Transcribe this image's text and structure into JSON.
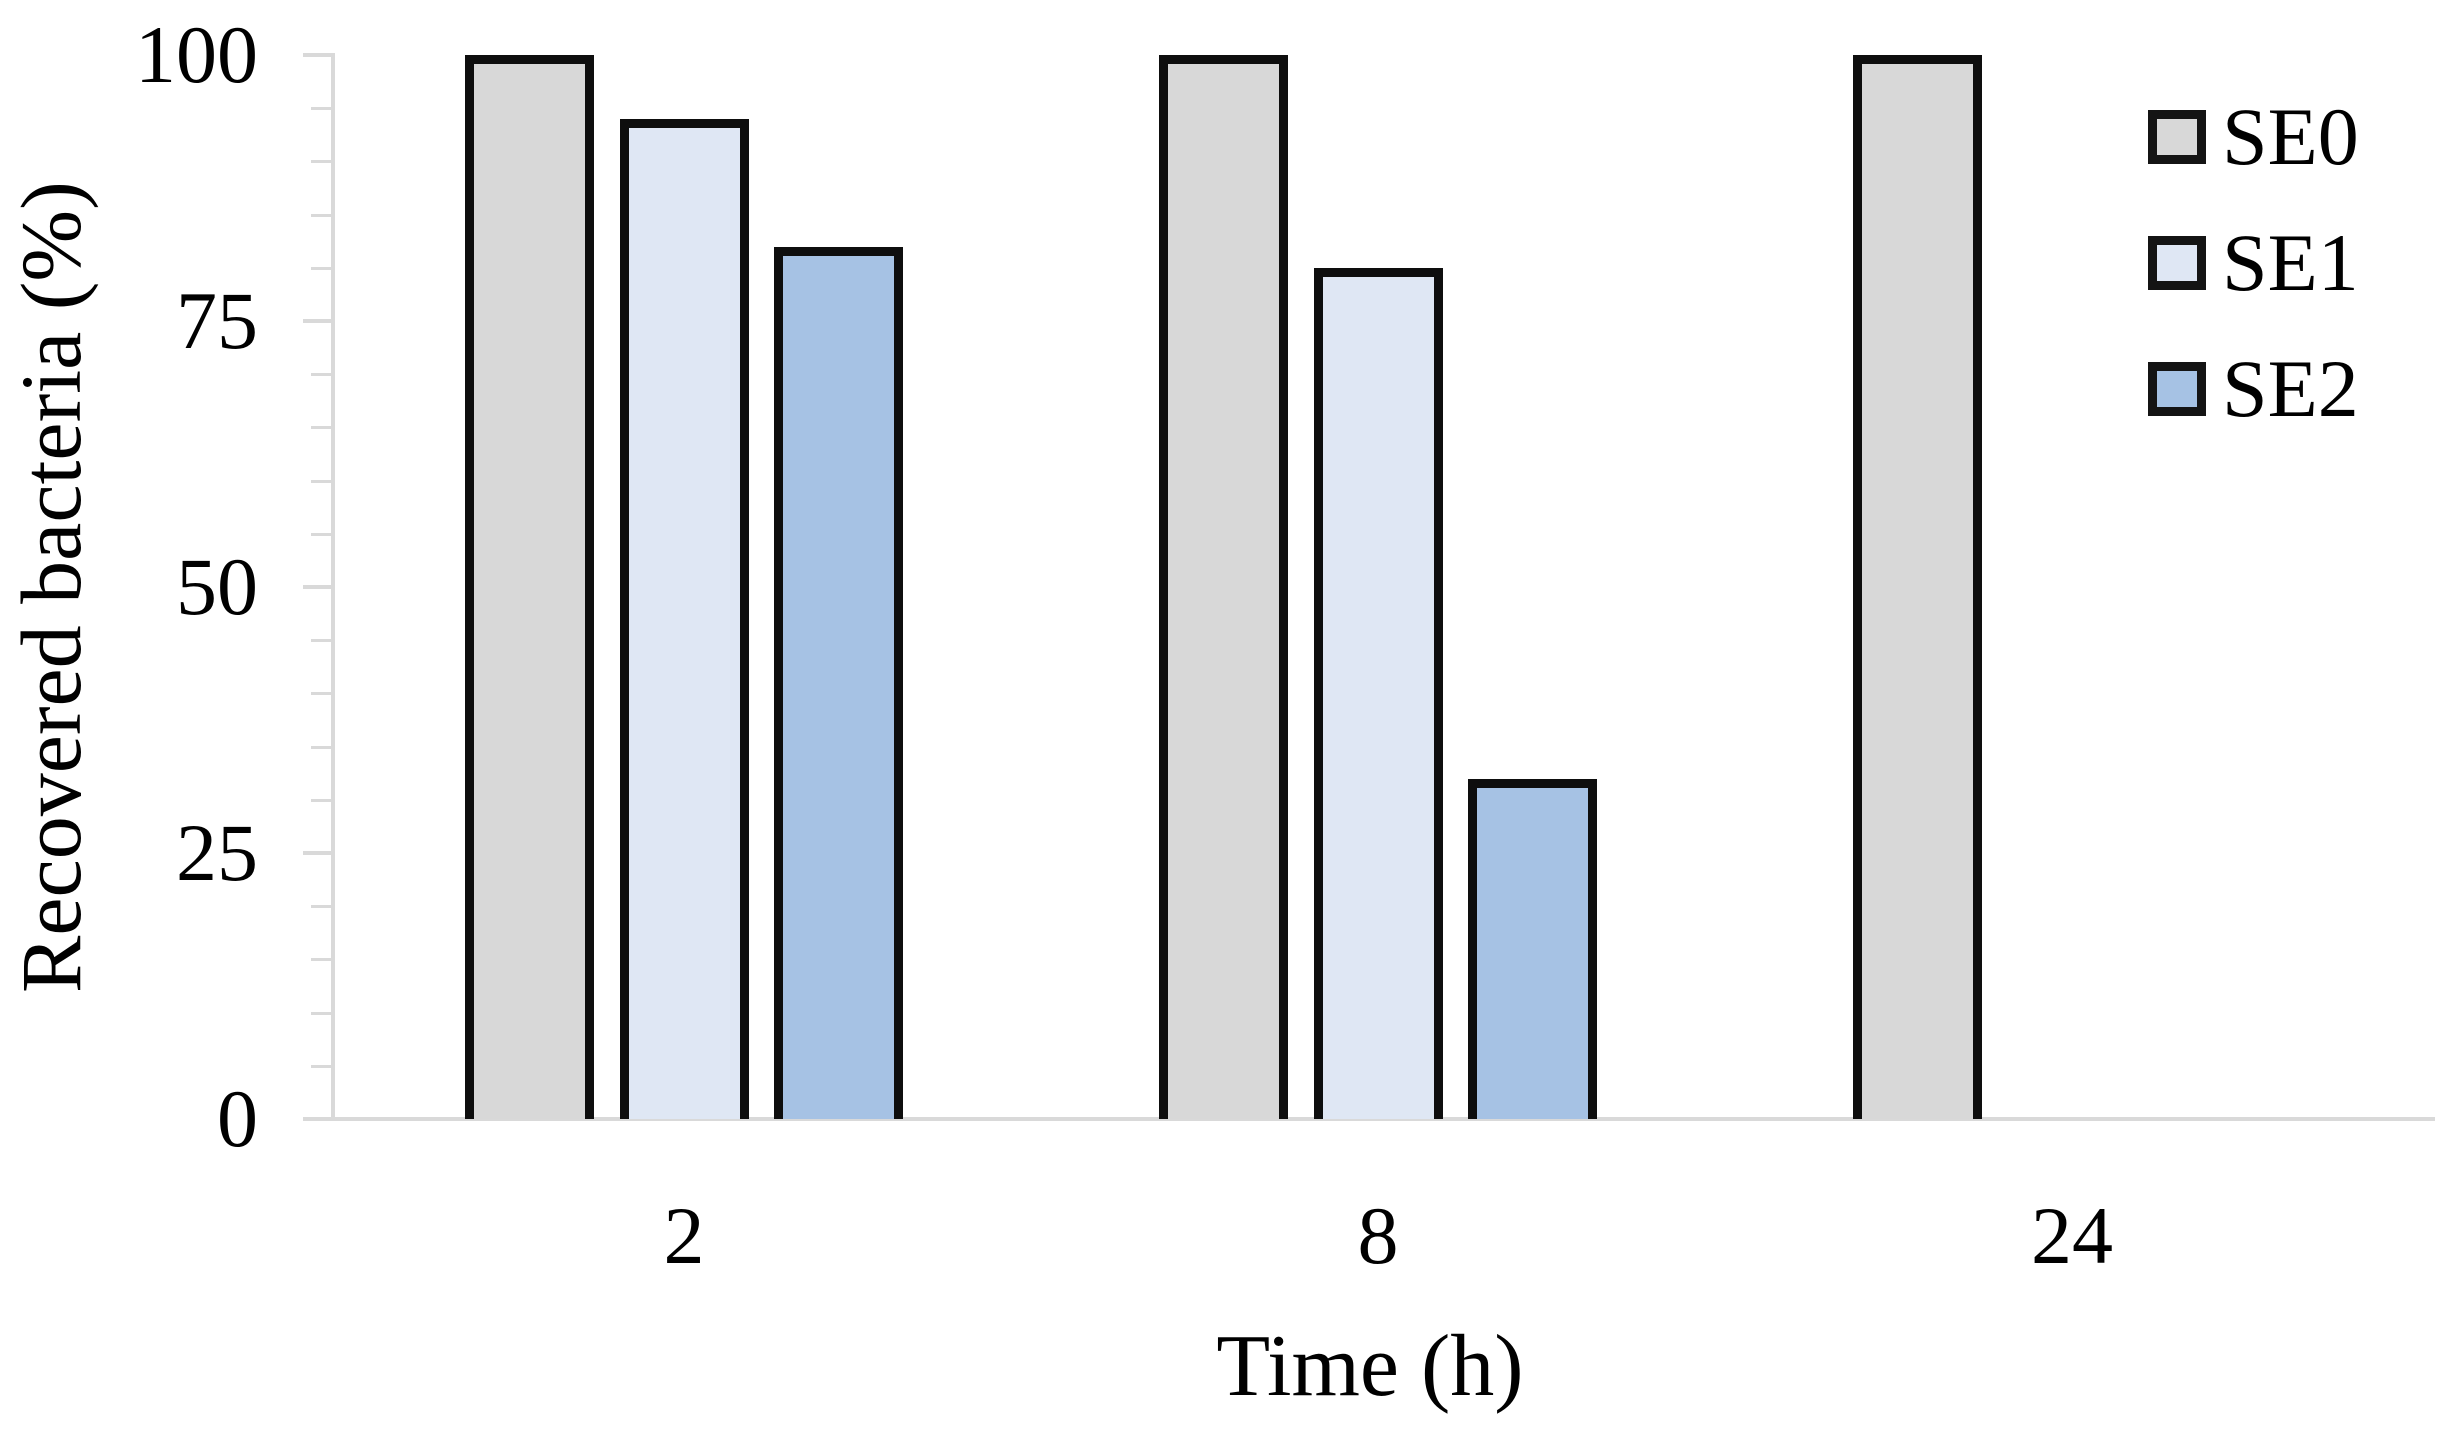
{
  "chart_data": {
    "type": "bar",
    "title": "",
    "xlabel": "Time (h)",
    "ylabel": "Recovered bacteria (%)",
    "categories": [
      "2",
      "8",
      "24"
    ],
    "series": [
      {
        "name": "SE0",
        "color": "#d8d8d8",
        "values": [
          100,
          100,
          100
        ]
      },
      {
        "name": "SE1",
        "color": "#dfe7f4",
        "values": [
          94,
          80,
          0
        ]
      },
      {
        "name": "SE2",
        "color": "#a6c2e4",
        "values": [
          82,
          32,
          0
        ]
      }
    ],
    "ylim": [
      0,
      100
    ],
    "yticks": [
      0,
      25,
      50,
      75,
      100
    ],
    "minor_tick_step": 5,
    "grid": false,
    "legend_position": "top-right",
    "bar_border_color": "#0e0e0e",
    "axis_color": "#d9d9d9",
    "text_color": "#000000"
  }
}
